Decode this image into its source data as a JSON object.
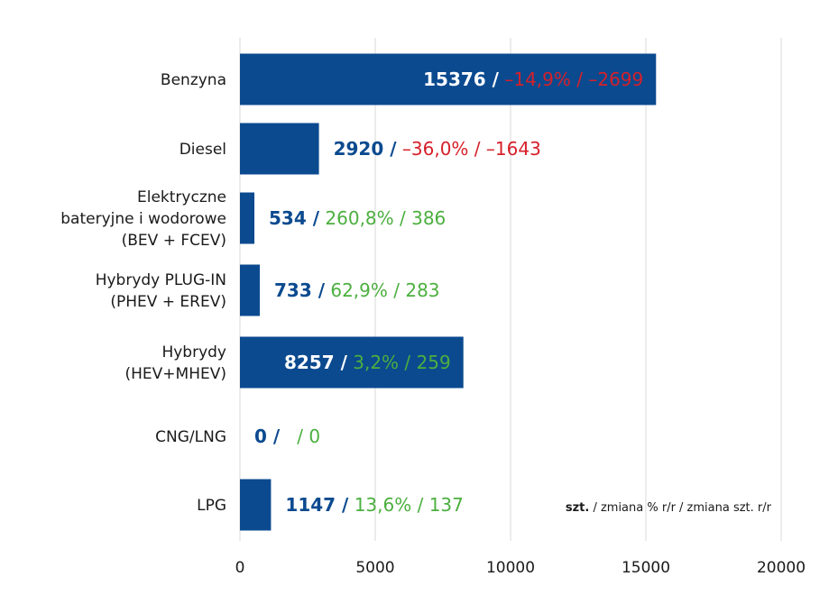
{
  "colors": {
    "bar": "#0b4a8f",
    "value_dark": "#0b4a8f",
    "value_light": "#ffffff",
    "negative": "#d6202a",
    "positive": "#4caf3f",
    "grid": "#d9d9d9"
  },
  "chart_data": {
    "type": "bar",
    "orientation": "horizontal",
    "grid": true,
    "xlim": [
      0,
      20000
    ],
    "xticks": [
      "0",
      "5000",
      "10000",
      "15000",
      "20000"
    ],
    "categories": [
      [
        "Benzyna"
      ],
      [
        "Diesel"
      ],
      [
        "Elektryczne",
        "bateryjne i wodorowe",
        "(BEV + FCEV)"
      ],
      [
        "Hybrydy PLUG-IN",
        "(PHEV + EREV)"
      ],
      [
        "Hybrydy",
        "(HEV+MHEV)"
      ],
      [
        "CNG/LNG"
      ],
      [
        "LPG"
      ]
    ],
    "values": [
      15376,
      2920,
      534,
      733,
      8257,
      0,
      1147
    ],
    "data_labels": [
      {
        "value": "15376",
        "pct": "–14,9%",
        "diff": "–2699",
        "sign": "negative",
        "inside": true
      },
      {
        "value": "2920",
        "pct": "–36,0%",
        "diff": "–1643",
        "sign": "negative",
        "inside": false
      },
      {
        "value": "534",
        "pct": "260,8%",
        "diff": "386",
        "sign": "positive",
        "inside": false
      },
      {
        "value": "733",
        "pct": "62,9%",
        "diff": "283",
        "sign": "positive",
        "inside": false
      },
      {
        "value": "8257",
        "pct": "3,2%",
        "diff": "259",
        "sign": "positive",
        "inside": true
      },
      {
        "value": "0",
        "pct": "",
        "diff": "0",
        "sign": "positive",
        "inside": false
      },
      {
        "value": "1147",
        "pct": "13,6%",
        "diff": "137",
        "sign": "positive",
        "inside": false
      }
    ],
    "legend_note": {
      "bold": "szt.",
      "rest": " / zmiana % r/r / zmiana szt. r/r"
    }
  }
}
